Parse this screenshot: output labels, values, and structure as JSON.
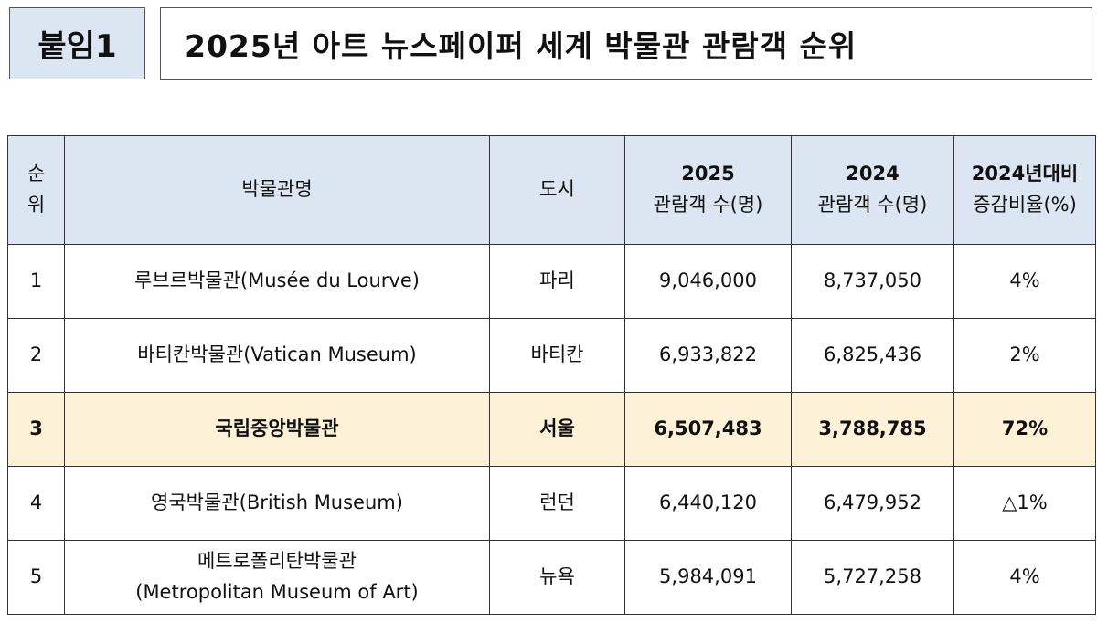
{
  "tag": "붙임1",
  "title": "2025년 아트 뉴스페이퍼 세계 박물관 관람객 순위",
  "table": {
    "headers": [
      {
        "l1": "순",
        "l2": "위"
      },
      {
        "l1": "박물관명",
        "l2": ""
      },
      {
        "l1": "도시",
        "l2": ""
      },
      {
        "l1": "2025",
        "l2": "관람객 수(명)"
      },
      {
        "l1": "2024",
        "l2": "관람객 수(명)"
      },
      {
        "l1": "2024년대비",
        "l2": "증감비율(%)"
      }
    ],
    "rows": [
      {
        "rank": "1",
        "name": "루브르박물관(Musée du Lourve)",
        "name2": "",
        "city": "파리",
        "v2025": "9,046,000",
        "v2024": "8,737,050",
        "change": "4%"
      },
      {
        "rank": "2",
        "name": "바티칸박물관(Vatican Museum)",
        "name2": "",
        "city": "바티칸",
        "v2025": "6,933,822",
        "v2024": "6,825,436",
        "change": "2%"
      },
      {
        "rank": "3",
        "name": "국립중앙박물관",
        "name2": "",
        "city": "서울",
        "v2025": "6,507,483",
        "v2024": "3,788,785",
        "change": "72%",
        "highlight_color": "#fdf1d8"
      },
      {
        "rank": "4",
        "name": "영국박물관(British Museum)",
        "name2": "",
        "city": "런던",
        "v2025": "6,440,120",
        "v2024": "6,479,952",
        "change": "△1%"
      },
      {
        "rank": "5",
        "name": "메트로폴리탄박물관",
        "name2": "(Metropolitan Museum of Art)",
        "city": "뉴욕",
        "v2025": "5,984,091",
        "v2024": "5,727,258",
        "change": "4%"
      }
    ]
  }
}
